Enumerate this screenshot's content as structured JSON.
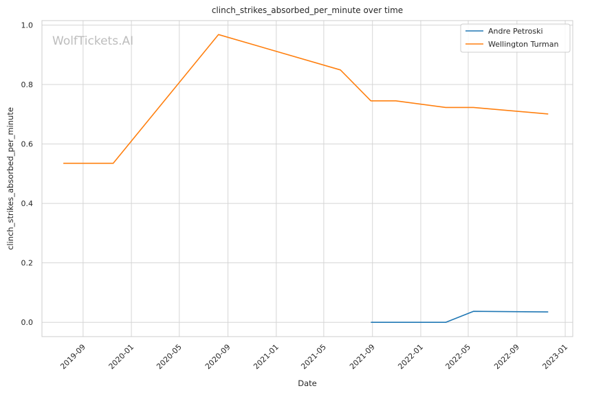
{
  "watermark": "WolfTickets.AI",
  "chart_data": {
    "type": "line",
    "title": "clinch_strikes_absorbed_per_minute over time",
    "xlabel": "Date",
    "ylabel": "clinch_strikes_absorbed_per_minute",
    "x_axis_type": "date",
    "xlim": [
      "2019-05-20",
      "2023-01-20"
    ],
    "ylim": [
      -0.048,
      1.015
    ],
    "grid": true,
    "legend_position": "top-right",
    "x_ticks": [
      "2019-09",
      "2020-01",
      "2020-05",
      "2020-09",
      "2021-01",
      "2021-05",
      "2021-09",
      "2022-01",
      "2022-05",
      "2022-09",
      "2023-01"
    ],
    "y_ticks": [
      "0.0",
      "0.2",
      "0.4",
      "0.6",
      "0.8",
      "1.0"
    ],
    "series": [
      {
        "name": "Andre Petroski",
        "color": "#1f77b4",
        "points": [
          {
            "x": "2021-08-28",
            "y": 0.0
          },
          {
            "x": "2022-03-05",
            "y": 0.0
          },
          {
            "x": "2022-05-14",
            "y": 0.037
          },
          {
            "x": "2022-11-19",
            "y": 0.035
          }
        ]
      },
      {
        "name": "Wellington Turman",
        "color": "#ff7f0e",
        "points": [
          {
            "x": "2019-07-13",
            "y": 0.535
          },
          {
            "x": "2019-11-16",
            "y": 0.535
          },
          {
            "x": "2020-08-08",
            "y": 0.968
          },
          {
            "x": "2021-06-12",
            "y": 0.849
          },
          {
            "x": "2021-08-28",
            "y": 0.745
          },
          {
            "x": "2021-10-30",
            "y": 0.745
          },
          {
            "x": "2022-03-05",
            "y": 0.723
          },
          {
            "x": "2022-05-14",
            "y": 0.723
          },
          {
            "x": "2022-11-19",
            "y": 0.701
          }
        ]
      }
    ]
  }
}
